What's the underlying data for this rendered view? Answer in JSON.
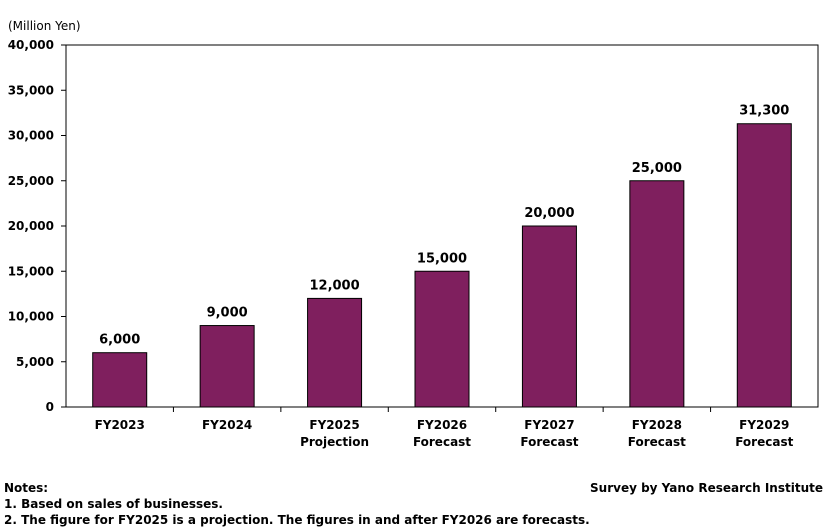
{
  "chart_data": {
    "type": "bar",
    "unit_label": "(Million Yen)",
    "categories": [
      [
        "FY2023"
      ],
      [
        "FY2024"
      ],
      [
        "FY2025",
        "Projection"
      ],
      [
        "FY2026",
        "Forecast"
      ],
      [
        "FY2027",
        "Forecast"
      ],
      [
        "FY2028",
        "Forecast"
      ],
      [
        "FY2029",
        "Forecast"
      ]
    ],
    "values": [
      6000,
      9000,
      12000,
      15000,
      20000,
      25000,
      31300
    ],
    "data_labels": [
      "6,000",
      "9,000",
      "12,000",
      "15,000",
      "20,000",
      "25,000",
      "31,300"
    ],
    "ylim": [
      0,
      40000
    ],
    "yticks": [
      0,
      5000,
      10000,
      15000,
      20000,
      25000,
      30000,
      35000,
      40000
    ],
    "ytick_labels": [
      "0",
      "5,000",
      "10,000",
      "15,000",
      "20,000",
      "25,000",
      "30,000",
      "35,000",
      "40,000"
    ],
    "bar_color": "#7f1f5e",
    "grid": false,
    "legend": "none"
  },
  "notes": {
    "heading": "Notes:",
    "lines": [
      "1. Based on sales of businesses.",
      "2. The figure for FY2025 is a projection. The figures in and after FY2026 are forecasts."
    ]
  },
  "source": "Survey by Yano Research Institute"
}
